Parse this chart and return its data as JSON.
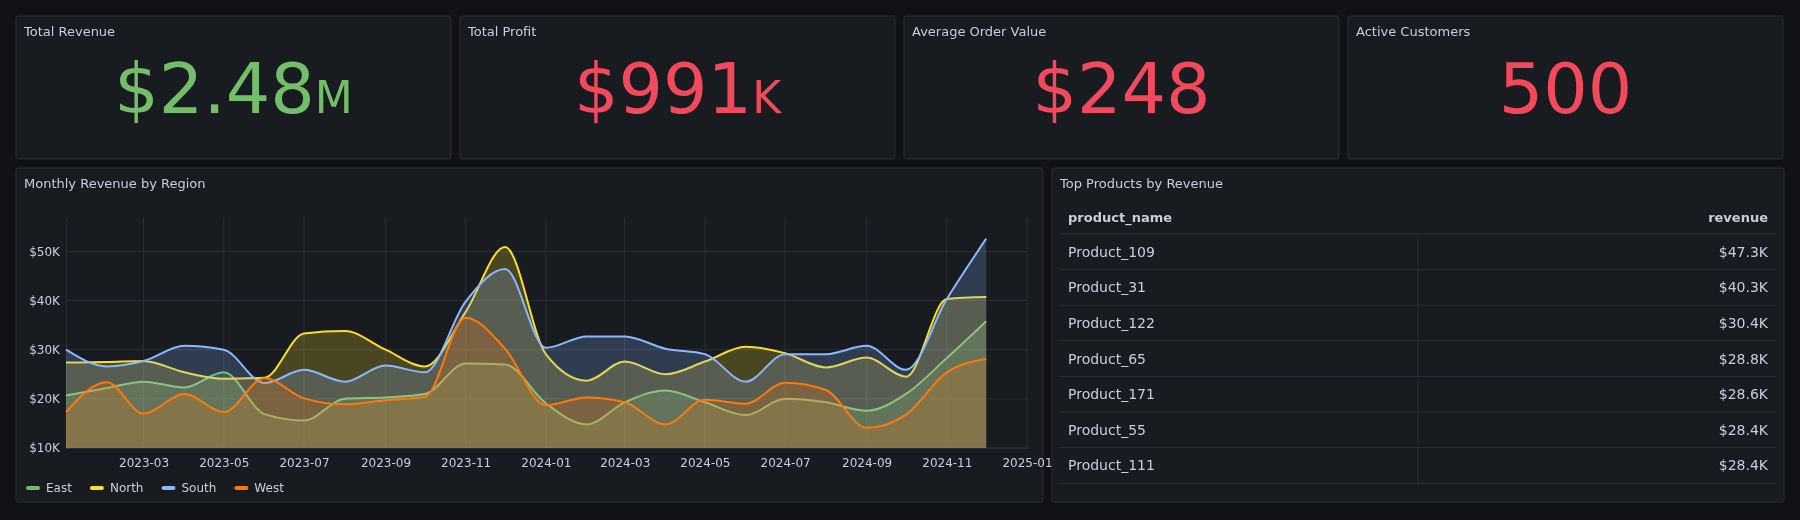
{
  "chart_data": [
    {
      "type": "other",
      "title": "Total Revenue",
      "annotations": [
        "$2.48M"
      ],
      "color": "#73bf69"
    },
    {
      "type": "other",
      "title": "Total Profit",
      "annotations": [
        "$991K"
      ],
      "color": "#f2495c"
    },
    {
      "type": "other",
      "title": "Average Order Value",
      "annotations": [
        "$248"
      ],
      "color": "#f2495c"
    },
    {
      "type": "other",
      "title": "Active Customers",
      "annotations": [
        "500"
      ],
      "color": "#f2495c"
    },
    {
      "type": "area",
      "title": "Monthly Revenue by Region",
      "x": [
        "2023-01",
        "2023-02",
        "2023-03",
        "2023-04",
        "2023-05",
        "2023-06",
        "2023-07",
        "2023-08",
        "2023-09",
        "2023-10",
        "2023-11",
        "2023-12",
        "2024-01",
        "2024-02",
        "2024-03",
        "2024-04",
        "2024-05",
        "2024-06",
        "2024-07",
        "2024-08",
        "2024-09",
        "2024-10",
        "2024-11",
        "2024-12"
      ],
      "series": [
        {
          "name": "East",
          "color": "#73bf69",
          "values": [
            20700,
            22200,
            23500,
            22300,
            25400,
            16900,
            15600,
            20000,
            20300,
            21000,
            27200,
            27000,
            19100,
            14800,
            19300,
            21700,
            19300,
            16700,
            20000,
            19300,
            17600,
            21000,
            28300,
            35800
          ]
        },
        {
          "name": "North",
          "color": "#fade2a",
          "values": [
            27400,
            27500,
            27700,
            25400,
            24100,
            24300,
            33300,
            33800,
            30000,
            26600,
            37700,
            50900,
            29100,
            23700,
            27600,
            25000,
            27600,
            30600,
            29300,
            26400,
            28400,
            24500,
            40300,
            40700
          ]
        },
        {
          "name": "South",
          "color": "#8ab8ff",
          "values": [
            30000,
            26600,
            27700,
            30800,
            30000,
            23200,
            25900,
            23500,
            26800,
            25400,
            39800,
            46400,
            30400,
            32700,
            32700,
            30200,
            29100,
            23500,
            29100,
            29100,
            30800,
            25900,
            40300,
            52600
          ]
        },
        {
          "name": "West",
          "color": "#ff780a",
          "values": [
            17300,
            23400,
            17000,
            21000,
            17300,
            24200,
            20100,
            18900,
            19700,
            20400,
            36500,
            30200,
            18700,
            20300,
            19300,
            14800,
            19800,
            19000,
            23300,
            21800,
            14100,
            16800,
            25400,
            28100
          ]
        }
      ],
      "xlim": [
        "2023-01-01",
        "2025-01-01"
      ],
      "xticks": [
        "2023-03",
        "2023-05",
        "2023-07",
        "2023-09",
        "2023-11",
        "2024-01",
        "2024-03",
        "2024-05",
        "2024-07",
        "2024-09",
        "2024-11",
        "2025-01"
      ],
      "ylim": [
        10000,
        57000
      ],
      "yticks": [
        {
          "value": 10000,
          "label": "$10K"
        },
        {
          "value": 20000,
          "label": "$20K"
        },
        {
          "value": 30000,
          "label": "$30K"
        },
        {
          "value": 40000,
          "label": "$40K"
        },
        {
          "value": 50000,
          "label": "$50K"
        }
      ],
      "grid": true,
      "legend": "bottom left"
    },
    {
      "type": "other",
      "title": "Top Products by Revenue",
      "annotations": [
        "product_name",
        "revenue"
      ],
      "categories": [
        "Product_109",
        "Product_31",
        "Product_122",
        "Product_65",
        "Product_171",
        "Product_55",
        "Product_111"
      ],
      "value_labels": [
        "$47.3K",
        "$40.3K",
        "$30.4K",
        "$28.8K",
        "$28.6K",
        "$28.4K",
        "$28.4K"
      ]
    }
  ]
}
